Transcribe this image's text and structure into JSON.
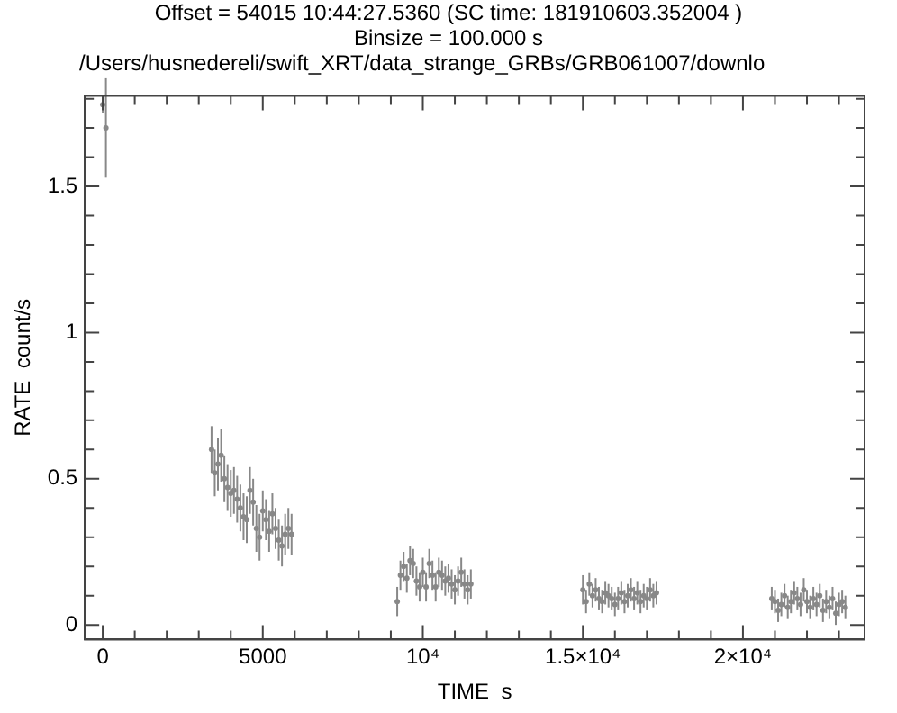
{
  "chart_data": {
    "type": "scatter",
    "title": "Offset =  54015 10:44:27.5360 (SC time:     181910603.352004 )",
    "subtitle": "Binsize =   100.000    s",
    "annotations": [
      "/Users/husnedereli/swift_XRT/data_strange_GRBs/GRB061007/downlo"
    ],
    "xlabel": "TIME  s",
    "ylabel": "RATE  count/s",
    "legend": false,
    "xlim": [
      -560,
      23800
    ],
    "ylim": [
      -0.05,
      1.81
    ],
    "xticks": [
      0,
      {
        "value": 1000,
        "label": null
      },
      {
        "value": 2000,
        "label": null
      },
      {
        "value": 3000,
        "label": null
      },
      {
        "value": 4000,
        "label": null
      },
      5000,
      {
        "value": 6000,
        "label": null
      },
      {
        "value": 7000,
        "label": null
      },
      {
        "value": 8000,
        "label": null
      },
      {
        "value": 9000,
        "label": null
      },
      {
        "value": 10000,
        "label": "10⁴"
      },
      {
        "value": 11000,
        "label": null
      },
      {
        "value": 12000,
        "label": null
      },
      {
        "value": 13000,
        "label": null
      },
      {
        "value": 14000,
        "label": null
      },
      {
        "value": 15000,
        "label": "1.5×10⁴"
      },
      {
        "value": 16000,
        "label": null
      },
      {
        "value": 17000,
        "label": null
      },
      {
        "value": 18000,
        "label": null
      },
      {
        "value": 19000,
        "label": null
      },
      {
        "value": 20000,
        "label": "2×10⁴"
      },
      {
        "value": 21000,
        "label": null
      },
      {
        "value": 22000,
        "label": null
      },
      {
        "value": 23000,
        "label": null
      }
    ],
    "yticks": [
      0,
      {
        "value": 0.1,
        "label": null
      },
      {
        "value": 0.2,
        "label": null
      },
      {
        "value": 0.3,
        "label": null
      },
      {
        "value": 0.4,
        "label": null
      },
      0.5,
      {
        "value": 0.6,
        "label": null
      },
      {
        "value": 0.7,
        "label": null
      },
      {
        "value": 0.8,
        "label": null
      },
      {
        "value": 0.9,
        "label": null
      },
      1,
      {
        "value": 1.1,
        "label": null
      },
      {
        "value": 1.2,
        "label": null
      },
      {
        "value": 1.3,
        "label": null
      },
      {
        "value": 1.4,
        "label": null
      },
      1.5,
      {
        "value": 1.6,
        "label": null
      },
      {
        "value": 1.7,
        "label": null
      },
      {
        "value": 1.8,
        "label": null
      }
    ],
    "series": [
      {
        "color": "#888888",
        "x": [
          0,
          100,
          3400,
          3500,
          3600,
          3700,
          3800,
          3900,
          4000,
          4100,
          4200,
          4300,
          4400,
          4500,
          4600,
          4700,
          4800,
          4900,
          5000,
          5100,
          5200,
          5300,
          5400,
          5500,
          5600,
          5700,
          5800,
          5900,
          9200,
          9300,
          9400,
          9500,
          9600,
          9700,
          9800,
          9900,
          10000,
          10100,
          10200,
          10300,
          10400,
          10500,
          10600,
          10700,
          10800,
          10900,
          11000,
          11100,
          11200,
          11300,
          11400,
          11500,
          15000,
          15100,
          15200,
          15300,
          15400,
          15500,
          15600,
          15700,
          15800,
          15900,
          16000,
          16100,
          16200,
          16300,
          16400,
          16500,
          16600,
          16700,
          16800,
          16900,
          17000,
          17100,
          17200,
          17300,
          20900,
          21000,
          21100,
          21200,
          21300,
          21400,
          21500,
          21600,
          21700,
          21800,
          21900,
          22000,
          22100,
          22200,
          22300,
          22400,
          22500,
          22600,
          22700,
          22800,
          22900,
          23000,
          23100,
          23200
        ],
        "values": [
          1.78,
          1.7,
          0.6,
          0.52,
          0.55,
          0.58,
          0.5,
          0.47,
          0.45,
          0.46,
          0.43,
          0.4,
          0.37,
          0.36,
          0.46,
          0.42,
          0.33,
          0.3,
          0.39,
          0.36,
          0.32,
          0.38,
          0.33,
          0.29,
          0.27,
          0.31,
          0.33,
          0.31,
          0.08,
          0.17,
          0.2,
          0.16,
          0.22,
          0.21,
          0.15,
          0.13,
          0.18,
          0.13,
          0.21,
          0.17,
          0.13,
          0.18,
          0.17,
          0.15,
          0.16,
          0.14,
          0.12,
          0.15,
          0.18,
          0.14,
          0.12,
          0.14,
          0.12,
          0.08,
          0.14,
          0.1,
          0.12,
          0.09,
          0.08,
          0.11,
          0.1,
          0.09,
          0.07,
          0.09,
          0.11,
          0.08,
          0.1,
          0.12,
          0.09,
          0.11,
          0.08,
          0.1,
          0.09,
          0.12,
          0.1,
          0.11,
          0.09,
          0.08,
          0.05,
          0.07,
          0.1,
          0.06,
          0.08,
          0.11,
          0.09,
          0.07,
          0.12,
          0.08,
          0.06,
          0.09,
          0.07,
          0.1,
          0.05,
          0.08,
          0.06,
          0.09,
          0.04,
          0.07,
          0.08,
          0.06
        ],
        "errors": [
          0.03,
          0.17,
          0.08,
          0.08,
          0.09,
          0.09,
          0.08,
          0.08,
          0.08,
          0.08,
          0.08,
          0.08,
          0.08,
          0.08,
          0.08,
          0.08,
          0.08,
          0.08,
          0.07,
          0.07,
          0.07,
          0.07,
          0.07,
          0.07,
          0.07,
          0.07,
          0.07,
          0.07,
          0.05,
          0.05,
          0.05,
          0.05,
          0.05,
          0.05,
          0.05,
          0.05,
          0.05,
          0.05,
          0.05,
          0.05,
          0.05,
          0.05,
          0.05,
          0.05,
          0.05,
          0.05,
          0.05,
          0.05,
          0.05,
          0.05,
          0.05,
          0.05,
          0.05,
          0.04,
          0.04,
          0.04,
          0.04,
          0.04,
          0.04,
          0.04,
          0.04,
          0.04,
          0.04,
          0.04,
          0.04,
          0.04,
          0.04,
          0.04,
          0.04,
          0.04,
          0.04,
          0.04,
          0.04,
          0.04,
          0.04,
          0.04,
          0.04,
          0.04,
          0.04,
          0.04,
          0.04,
          0.04,
          0.04,
          0.04,
          0.04,
          0.04,
          0.04,
          0.04,
          0.04,
          0.04,
          0.04,
          0.04,
          0.04,
          0.04,
          0.04,
          0.04,
          0.04,
          0.04,
          0.04,
          0.04
        ]
      }
    ]
  }
}
